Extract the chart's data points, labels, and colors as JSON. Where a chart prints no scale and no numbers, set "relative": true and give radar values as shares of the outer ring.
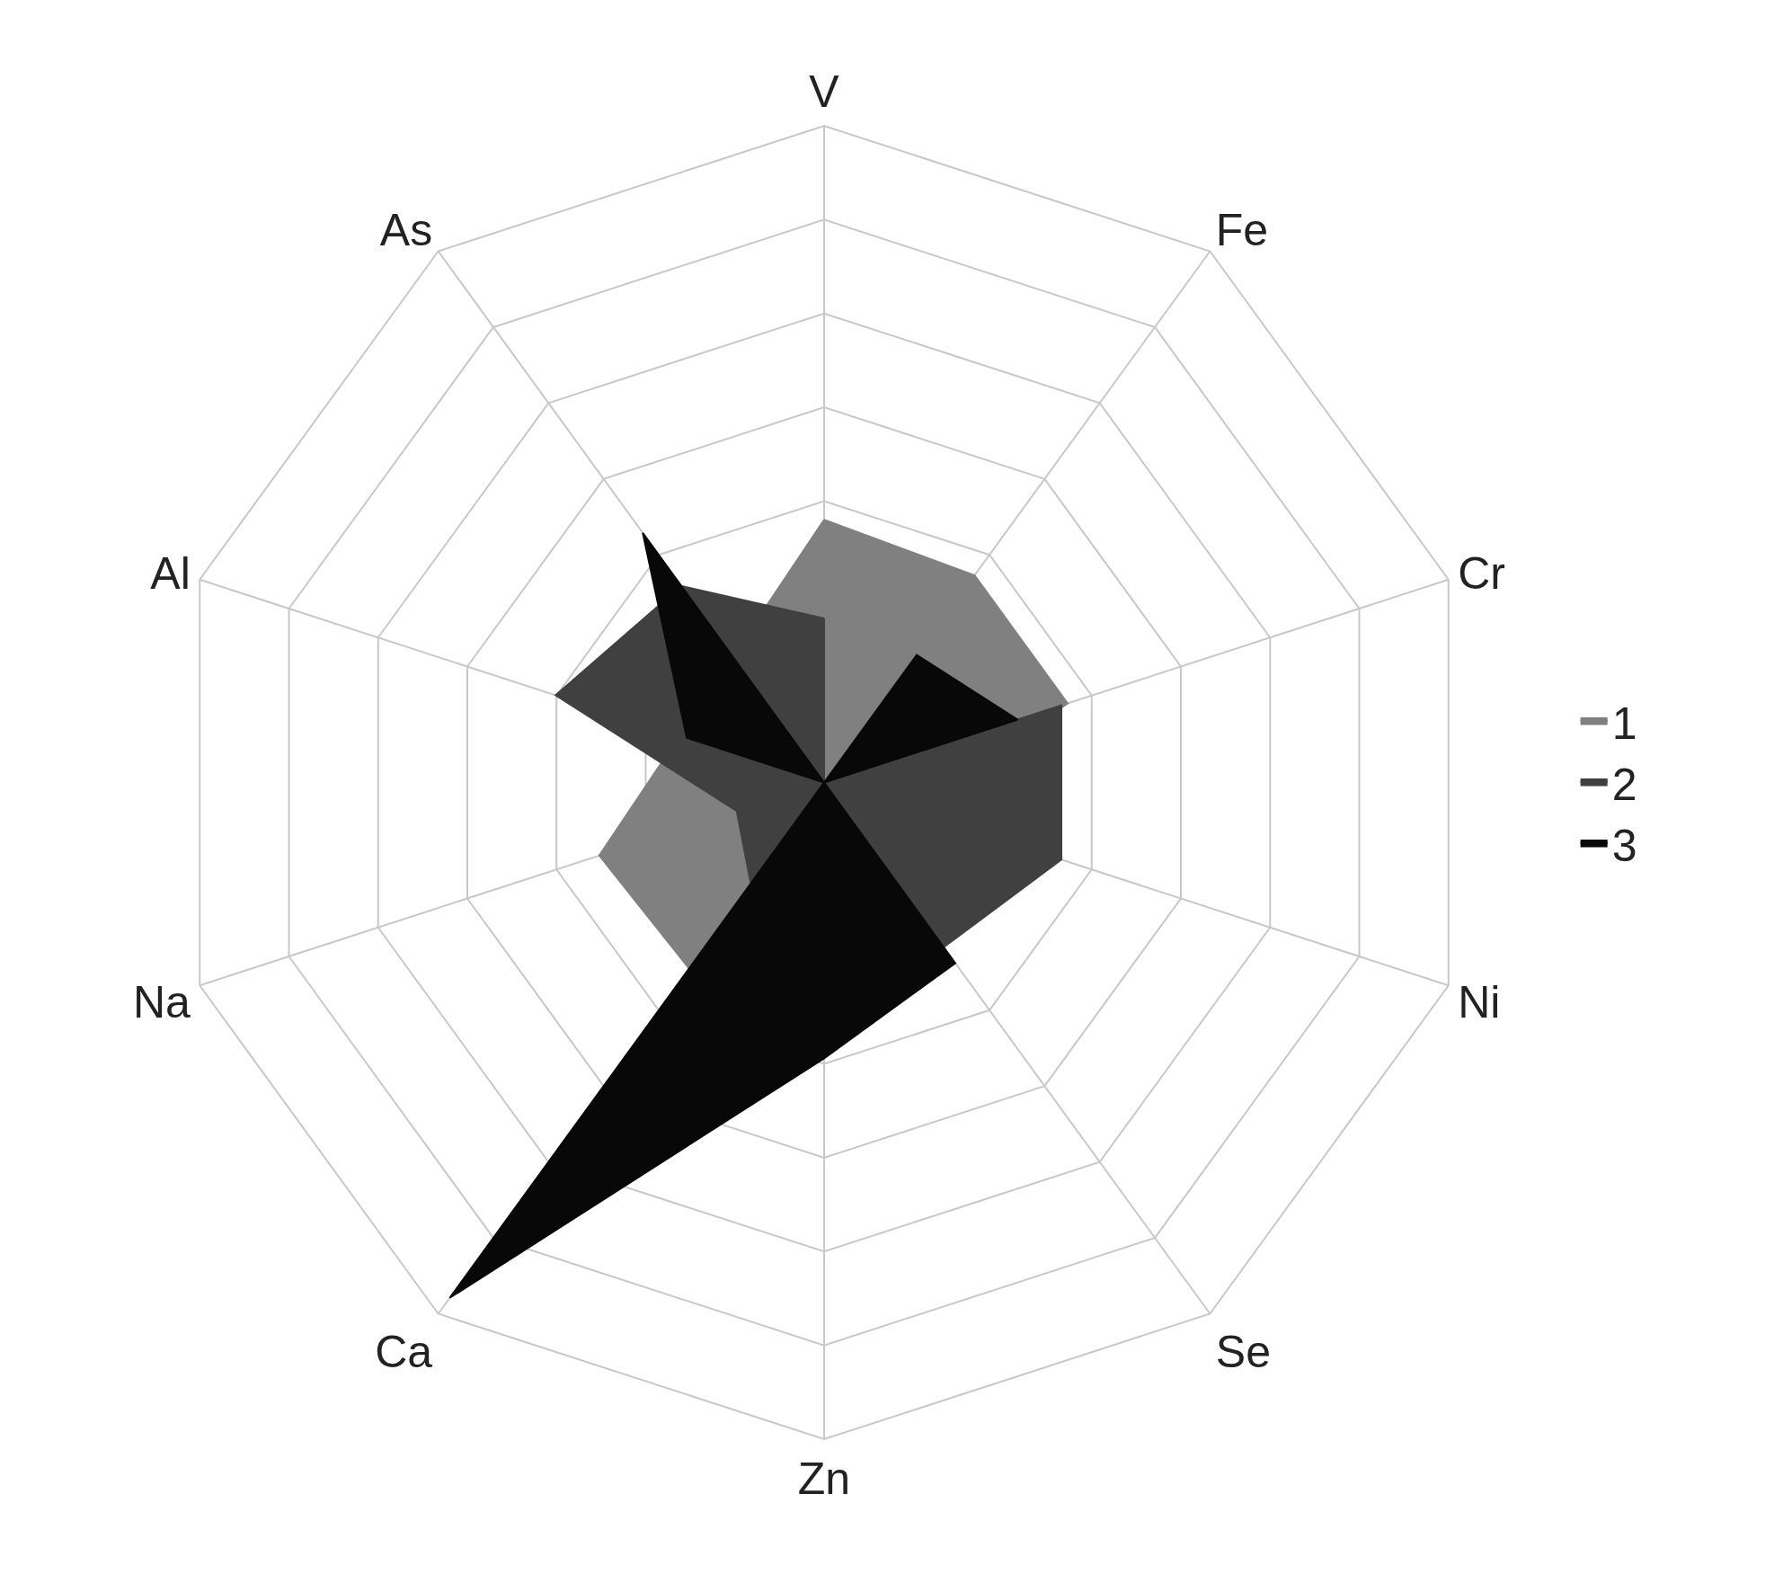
{
  "chart_data": {
    "type": "radar",
    "relative": true,
    "legend": "right",
    "grid": true,
    "categories": [
      "V",
      "Fe",
      "Cr",
      "Ni",
      "Se",
      "Zn",
      "Ca",
      "Na",
      "Al",
      "As"
    ],
    "series": [
      {
        "name": "1",
        "color": "#808080",
        "values": [
          0.4,
          0.39,
          0.39,
          null,
          null,
          null,
          0.35,
          0.36,
          null,
          null
        ]
      },
      {
        "name": "2",
        "color": "#404040",
        "values": [
          0.25,
          0,
          0.38,
          0.38,
          0.31,
          null,
          0.19,
          0.14,
          0.43,
          0.37
        ]
      },
      {
        "name": "3",
        "color": "#080808",
        "values": [
          0,
          0.24,
          0.31,
          0,
          0.34,
          0.42,
          0.97,
          0,
          0.22,
          0.47
        ]
      }
    ]
  }
}
